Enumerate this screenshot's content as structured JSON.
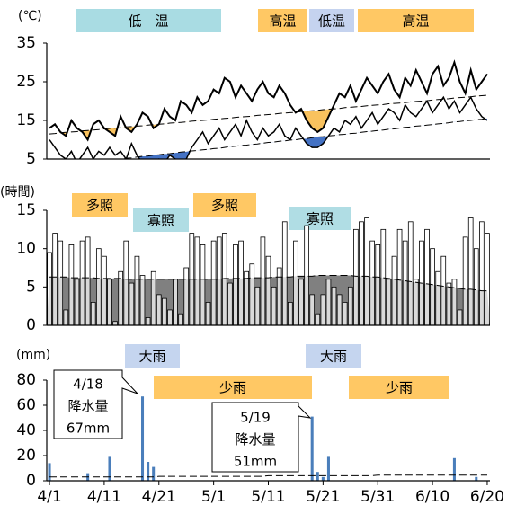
{
  "chart_data": [
    {
      "type": "line",
      "unit_label": "(℃)",
      "ylim": [
        5,
        35
      ],
      "yticks": [
        5,
        15,
        25,
        35
      ],
      "series": [
        {
          "color": "#000000",
          "width": 2,
          "values": [
            13,
            14,
            12,
            11,
            15,
            13,
            12,
            10,
            14,
            15,
            13,
            12,
            11,
            16,
            13,
            12,
            14,
            17,
            16,
            13,
            14,
            18,
            16,
            15,
            20,
            19,
            17,
            21,
            19,
            20,
            23,
            22,
            26,
            25,
            21,
            24,
            22,
            20,
            23,
            25,
            22,
            21,
            24,
            22,
            19,
            17,
            18,
            15,
            13,
            12,
            13,
            16,
            19,
            22,
            21,
            24,
            20,
            23,
            26,
            24,
            22,
            25,
            27,
            23,
            21,
            26,
            24,
            28,
            25,
            22,
            27,
            29,
            24,
            26,
            30,
            25,
            22,
            28,
            23,
            25,
            27
          ]
        },
        {
          "color": "#000000",
          "width": 1.5,
          "values": [
            10,
            8,
            6,
            5,
            7,
            4,
            6,
            8,
            5,
            7,
            6,
            8,
            6,
            7,
            5,
            9,
            6,
            4,
            3,
            4,
            5,
            4,
            6,
            5,
            3,
            5,
            8,
            10,
            12,
            9,
            11,
            13,
            10,
            12,
            14,
            11,
            15,
            12,
            10,
            13,
            11,
            12,
            14,
            11,
            10,
            13,
            11,
            9,
            8,
            8,
            9,
            11,
            13,
            12,
            15,
            14,
            16,
            13,
            15,
            17,
            14,
            16,
            18,
            17,
            15,
            19,
            17,
            16,
            18,
            20,
            17,
            19,
            21,
            18,
            20,
            17,
            19,
            21,
            18,
            16,
            15
          ]
        },
        {
          "color": "#000000",
          "width": 1,
          "dashed": true,
          "fill_color": "#f9c25e",
          "values": [
            11.5,
            11.6,
            11.8,
            11.9,
            12.0,
            12.1,
            12.3,
            12.4,
            12.5,
            12.6,
            12.8,
            12.9,
            13.0,
            13.1,
            13.3,
            13.4,
            13.5,
            13.6,
            13.8,
            13.9,
            14.0,
            14.1,
            14.3,
            14.4,
            14.5,
            14.6,
            14.8,
            14.9,
            15.0,
            15.1,
            15.3,
            15.4,
            15.5,
            15.6,
            15.8,
            15.9,
            16.0,
            16.1,
            16.3,
            16.4,
            16.5,
            16.6,
            16.8,
            16.9,
            17.0,
            17.1,
            17.3,
            17.4,
            17.5,
            17.6,
            17.8,
            17.9,
            18.0,
            18.1,
            18.3,
            18.4,
            18.5,
            18.6,
            18.8,
            18.9,
            19.0,
            19.1,
            19.3,
            19.4,
            19.5,
            19.6,
            19.8,
            19.9,
            20.0,
            20.1,
            20.3,
            20.4,
            20.5,
            20.6,
            20.8,
            20.9,
            21.0,
            21.1,
            21.3,
            21.4,
            21.5
          ]
        },
        {
          "color": "#000000",
          "width": 1,
          "dashed": true,
          "fill_color": "#4472c4",
          "values": [
            3.0,
            3.2,
            3.3,
            3.5,
            3.6,
            3.8,
            3.9,
            4.1,
            4.3,
            4.4,
            4.6,
            4.7,
            4.9,
            5.0,
            5.2,
            5.3,
            5.5,
            5.7,
            5.8,
            6.0,
            6.1,
            6.3,
            6.4,
            6.6,
            6.8,
            6.9,
            7.1,
            7.2,
            7.4,
            7.5,
            7.7,
            7.8,
            8.0,
            8.2,
            8.3,
            8.5,
            8.6,
            8.8,
            8.9,
            9.1,
            9.3,
            9.4,
            9.6,
            9.7,
            9.9,
            10.0,
            10.2,
            10.3,
            10.5,
            10.7,
            10.8,
            11.0,
            11.1,
            11.3,
            11.4,
            11.6,
            11.7,
            11.9,
            12.1,
            12.2,
            12.4,
            12.5,
            12.7,
            12.8,
            13.0,
            13.2,
            13.3,
            13.5,
            13.6,
            13.8,
            13.9,
            14.1,
            14.2,
            14.4,
            14.6,
            14.7,
            14.9,
            15.0,
            15.2,
            15.3,
            15.5
          ]
        }
      ],
      "bands": [
        {
          "label": "低　温",
          "color": "#a9dce3"
        },
        {
          "label": "高温",
          "color": "#ffc864"
        },
        {
          "label": "低温",
          "color": "#c5d3ef"
        },
        {
          "label": "高温",
          "color": "#ffc864"
        }
      ]
    },
    {
      "type": "bar",
      "unit_label": "(時間)",
      "ylim": [
        0,
        15
      ],
      "yticks": [
        0,
        5,
        10,
        15
      ],
      "color": "#ffffff",
      "stroke": "#000000",
      "below_normal_color": "#d9d9d9",
      "values": [
        9.5,
        12,
        11,
        2,
        10.5,
        6,
        11,
        11.5,
        3,
        10,
        9,
        6,
        0.5,
        7,
        11,
        5.5,
        9,
        6.5,
        1,
        7,
        4,
        3.5,
        2,
        6,
        1.5,
        7.5,
        12,
        11.5,
        10.5,
        3,
        11,
        11.5,
        12,
        5.5,
        10.5,
        11,
        7,
        8,
        5,
        11.5,
        9,
        5,
        7.5,
        13.5,
        3,
        11,
        6,
        13,
        4,
        1.5,
        4,
        6,
        5,
        4,
        3,
        5,
        12.5,
        13.5,
        14,
        11,
        10.5,
        12.5,
        6,
        9,
        12.5,
        11,
        13.5,
        6,
        11,
        12.5,
        10,
        7,
        9,
        5.5,
        6,
        2,
        11.5,
        14,
        10,
        13.5,
        12
      ],
      "normal": {
        "color": "#808080",
        "values": [
          6.3,
          6.3,
          6.3,
          6.3,
          6.2,
          6.2,
          6.2,
          6.2,
          6.2,
          6.1,
          6.1,
          6.1,
          6.1,
          6.1,
          6.0,
          6.0,
          6.0,
          6.0,
          6.0,
          6.0,
          6.0,
          6.0,
          6.0,
          6.0,
          6.0,
          6.0,
          6.0,
          6.0,
          6.0,
          6.0,
          6.0,
          6.0,
          6.1,
          6.1,
          6.1,
          6.1,
          6.1,
          6.2,
          6.2,
          6.2,
          6.2,
          6.3,
          6.3,
          6.3,
          6.3,
          6.4,
          6.4,
          6.4,
          6.4,
          6.5,
          6.5,
          6.5,
          6.5,
          6.5,
          6.5,
          6.5,
          6.4,
          6.4,
          6.4,
          6.3,
          6.3,
          6.2,
          6.1,
          6.0,
          5.9,
          5.8,
          5.7,
          5.6,
          5.5,
          5.4,
          5.3,
          5.2,
          5.1,
          5.0,
          4.9,
          4.8,
          4.7,
          4.7,
          4.6,
          4.5,
          4.5
        ]
      },
      "bands": [
        {
          "label": "多照",
          "color": "#ffc864"
        },
        {
          "label": "寡照",
          "color": "#b0dde4"
        },
        {
          "label": "多照",
          "color": "#ffc864"
        },
        {
          "label": "寡照",
          "color": "#b0dde4"
        }
      ]
    },
    {
      "type": "bar",
      "unit_label": "(mm)",
      "ylim": [
        0,
        80
      ],
      "yticks": [
        0,
        20,
        40,
        60,
        80
      ],
      "color": "#4a7ebb",
      "categories": [
        "4/1",
        null,
        null,
        null,
        null,
        null,
        null,
        null,
        null,
        null,
        "4/11",
        null,
        null,
        null,
        null,
        null,
        null,
        null,
        null,
        null,
        "4/21",
        null,
        null,
        null,
        null,
        null,
        null,
        null,
        null,
        null,
        "5/1",
        null,
        null,
        null,
        null,
        null,
        null,
        null,
        null,
        null,
        "5/11",
        null,
        null,
        null,
        null,
        null,
        null,
        null,
        null,
        null,
        "5/21",
        null,
        null,
        null,
        null,
        null,
        null,
        null,
        null,
        null,
        "5/31",
        null,
        null,
        null,
        null,
        null,
        null,
        null,
        null,
        null,
        "6/10",
        null,
        null,
        null,
        null,
        null,
        null,
        null,
        null,
        null,
        "6/20"
      ],
      "values": [
        14,
        0,
        0,
        0,
        0,
        0,
        0,
        6,
        0,
        0,
        0,
        19,
        0,
        0,
        0,
        0,
        0,
        67,
        15,
        11,
        0,
        0,
        0,
        0,
        0,
        0,
        0,
        0,
        0,
        0,
        0,
        0,
        0,
        0,
        0,
        0,
        0,
        0,
        0,
        0,
        0,
        0,
        0,
        0,
        0,
        0,
        0,
        0,
        51,
        7,
        3,
        19,
        0,
        0,
        0,
        0,
        0,
        0,
        0,
        0,
        0,
        0,
        0,
        0,
        0,
        0,
        0,
        0,
        0,
        0,
        0,
        0,
        0,
        0,
        18,
        0,
        0,
        0,
        3,
        0,
        0
      ],
      "normal": {
        "dashed": true,
        "values": [
          3,
          3,
          3,
          3,
          3,
          3,
          3,
          3,
          3,
          3,
          3,
          3,
          3,
          3,
          3,
          3,
          3,
          3,
          3,
          3,
          3.5,
          3.5,
          3.5,
          3.5,
          3.5,
          3.5,
          3.5,
          3.5,
          3.5,
          3.5,
          3.5,
          3.5,
          3.5,
          3.5,
          3.5,
          3.5,
          3.5,
          3.5,
          3.5,
          3.5,
          4,
          4,
          4,
          4,
          4,
          4,
          4,
          4,
          4,
          4,
          4,
          4,
          4,
          4,
          4,
          4,
          4,
          4,
          4,
          4,
          4.5,
          4.5,
          4.5,
          4.5,
          4.5,
          4.5,
          4.5,
          4.5,
          4.5,
          4.5,
          4.5,
          4.5,
          4.5,
          4.5,
          4.5,
          4.5,
          4.5,
          4.5,
          4.5,
          4.5,
          4.5
        ]
      },
      "bands": [
        {
          "label": "大雨",
          "color": "#c5d5ef"
        },
        {
          "label": "少雨",
          "color": "#ffc864"
        },
        {
          "label": "大雨",
          "color": "#c5d5ef"
        },
        {
          "label": "少雨",
          "color": "#ffc864"
        }
      ],
      "annotations": [
        {
          "date": "4/18",
          "label": "降水量",
          "amount": "67mm"
        },
        {
          "date": "5/19",
          "label": "降水量",
          "amount": "51mm"
        }
      ]
    }
  ]
}
